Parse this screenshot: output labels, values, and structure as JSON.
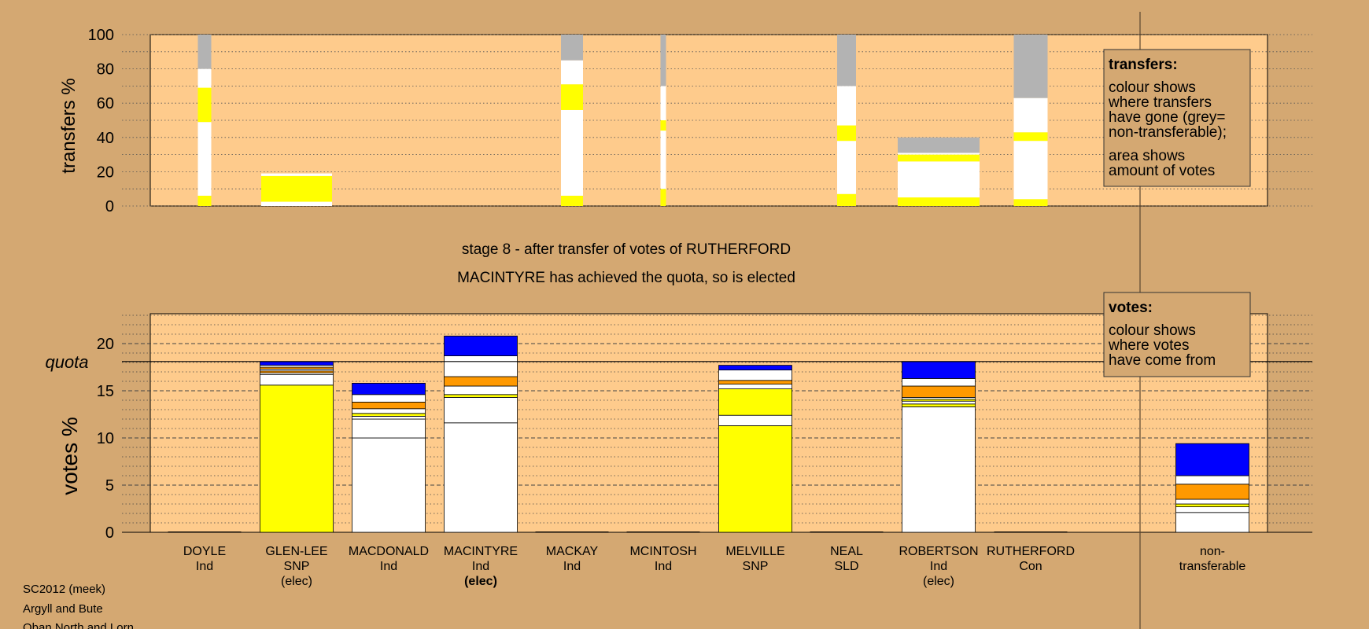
{
  "colors": {
    "background": "#d4a872",
    "plot_bg": "#fecb8c",
    "yellow": "#ffff00",
    "white": "#ffffff",
    "orange": "#ff9900",
    "blue": "#0000ff",
    "grey": "#b3b3b3"
  },
  "stage_title": "stage 8 - after transfer of votes of RUTHERFORD",
  "stage_subtitle": "MACINTYRE has achieved the quota, so is elected",
  "footer": [
    "SC2012 (meek)",
    "Argyll and Bute",
    "Oban North and Lorn"
  ],
  "chart_data": [
    {
      "type": "bar",
      "title": "",
      "ylabel": "transfers %",
      "ylim": [
        0,
        100
      ],
      "yticks": [
        0,
        20,
        40,
        60,
        80,
        100
      ],
      "grid": true,
      "legend": {
        "position": "top-right",
        "title": "transfers:",
        "lines_a": [
          "colour shows",
          "where transfers",
          "have gone (grey=",
          "non-transferable);"
        ],
        "lines_b": [
          "area shows",
          "amount of votes"
        ]
      },
      "bars": [
        {
          "candidate": "DOYLE",
          "segments": [
            {
              "color": "yellow",
              "value": 6
            },
            {
              "color": "white",
              "value": 43
            },
            {
              "color": "yellow",
              "value": 20
            },
            {
              "color": "white",
              "value": 11
            },
            {
              "color": "grey",
              "value": 20
            }
          ]
        },
        {
          "candidate": "GLEN-LEE",
          "segments": [
            {
              "color": "white",
              "value": 2.5
            },
            {
              "color": "yellow",
              "value": 15
            },
            {
              "color": "white",
              "value": 1.5
            }
          ]
        },
        {
          "candidate": "MACKAY",
          "segments": [
            {
              "color": "yellow",
              "value": 6
            },
            {
              "color": "white",
              "value": 50
            },
            {
              "color": "yellow",
              "value": 15
            },
            {
              "color": "white",
              "value": 14
            },
            {
              "color": "grey",
              "value": 15
            }
          ]
        },
        {
          "candidate": "MCINTOSH",
          "segments": [
            {
              "color": "yellow",
              "value": 10
            },
            {
              "color": "white",
              "value": 34
            },
            {
              "color": "yellow",
              "value": 6
            },
            {
              "color": "white",
              "value": 20
            },
            {
              "color": "grey",
              "value": 30
            }
          ]
        },
        {
          "candidate": "NEAL",
          "segments": [
            {
              "color": "yellow",
              "value": 7
            },
            {
              "color": "white",
              "value": 31
            },
            {
              "color": "yellow",
              "value": 9
            },
            {
              "color": "white",
              "value": 23
            },
            {
              "color": "grey",
              "value": 30
            }
          ]
        },
        {
          "candidate": "ROBERTSON",
          "segments": [
            {
              "color": "yellow",
              "value": 5
            },
            {
              "color": "white",
              "value": 21
            },
            {
              "color": "yellow",
              "value": 4
            },
            {
              "color": "white",
              "value": 1
            },
            {
              "color": "grey",
              "value": 9
            }
          ]
        },
        {
          "candidate": "RUTHERFORD",
          "segments": [
            {
              "color": "yellow",
              "value": 4
            },
            {
              "color": "white",
              "value": 34
            },
            {
              "color": "yellow",
              "value": 5
            },
            {
              "color": "white",
              "value": 20
            },
            {
              "color": "grey",
              "value": 37
            }
          ]
        }
      ]
    },
    {
      "type": "bar",
      "title": "",
      "ylabel": "votes %",
      "ylim": [
        0,
        23
      ],
      "yticks": [
        0,
        5,
        10,
        15,
        20
      ],
      "quota": 18.1,
      "quota_label": "quota",
      "grid": true,
      "legend": {
        "position": "top-right",
        "title": "votes:",
        "lines": [
          "colour shows",
          "where votes",
          "have come from"
        ]
      },
      "categories": [
        {
          "name": "DOYLE",
          "party": "Ind",
          "note": ""
        },
        {
          "name": "GLEN-LEE",
          "party": "SNP",
          "note": "(elec)"
        },
        {
          "name": "MACDONALD",
          "party": "Ind",
          "note": ""
        },
        {
          "name": "MACINTYRE",
          "party": "Ind",
          "note": "(elec)",
          "note_bold": true
        },
        {
          "name": "MACKAY",
          "party": "Ind",
          "note": ""
        },
        {
          "name": "MCINTOSH",
          "party": "Ind",
          "note": ""
        },
        {
          "name": "MELVILLE",
          "party": "SNP",
          "note": ""
        },
        {
          "name": "NEAL",
          "party": "SLD",
          "note": ""
        },
        {
          "name": "ROBERTSON",
          "party": "Ind",
          "note": "(elec)"
        },
        {
          "name": "RUTHERFORD",
          "party": "Con",
          "note": ""
        },
        {
          "name": "non-",
          "party": "transferable",
          "note": ""
        }
      ],
      "bars": [
        {
          "candidate": "DOYLE",
          "segments": []
        },
        {
          "candidate": "GLEN-LEE",
          "segments": [
            {
              "color": "yellow",
              "value": 15.6
            },
            {
              "color": "white",
              "value": 1.1
            },
            {
              "color": "white",
              "value": 0.2
            },
            {
              "color": "orange",
              "value": 0.2
            },
            {
              "color": "white",
              "value": 0.2
            },
            {
              "color": "orange",
              "value": 0.2
            },
            {
              "color": "white",
              "value": 0.2
            },
            {
              "color": "blue",
              "value": 0.4
            }
          ]
        },
        {
          "candidate": "MACDONALD",
          "segments": [
            {
              "color": "white",
              "value": 10
            },
            {
              "color": "white",
              "value": 2
            },
            {
              "color": "white",
              "value": 0.3
            },
            {
              "color": "yellow",
              "value": 0.3
            },
            {
              "color": "white",
              "value": 0.5
            },
            {
              "color": "orange",
              "value": 0.7
            },
            {
              "color": "white",
              "value": 0.8
            },
            {
              "color": "blue",
              "value": 1.2
            }
          ]
        },
        {
          "candidate": "MACINTYRE",
          "segments": [
            {
              "color": "white",
              "value": 11.6
            },
            {
              "color": "white",
              "value": 2.7
            },
            {
              "color": "yellow",
              "value": 0.3
            },
            {
              "color": "white",
              "value": 0.9
            },
            {
              "color": "orange",
              "value": 1
            },
            {
              "color": "white",
              "value": 2.2
            },
            {
              "color": "blue",
              "value": 2.1
            }
          ]
        },
        {
          "candidate": "MACKAY",
          "segments": []
        },
        {
          "candidate": "MCINTOSH",
          "segments": []
        },
        {
          "candidate": "MELVILLE",
          "segments": [
            {
              "color": "yellow",
              "value": 11.3
            },
            {
              "color": "white",
              "value": 1.1
            },
            {
              "color": "yellow",
              "value": 2.8
            },
            {
              "color": "white",
              "value": 0.5
            },
            {
              "color": "orange",
              "value": 0.4
            },
            {
              "color": "white",
              "value": 1.1
            },
            {
              "color": "blue",
              "value": 0.5
            }
          ]
        },
        {
          "candidate": "NEAL",
          "segments": []
        },
        {
          "candidate": "ROBERTSON",
          "segments": [
            {
              "color": "white",
              "value": 13.3
            },
            {
              "color": "yellow",
              "value": 0.3
            },
            {
              "color": "white",
              "value": 0.3
            },
            {
              "color": "yellow",
              "value": 0.2
            },
            {
              "color": "white",
              "value": 0.2
            },
            {
              "color": "orange",
              "value": 1.2
            },
            {
              "color": "white",
              "value": 0.8
            },
            {
              "color": "blue",
              "value": 1.8
            }
          ]
        },
        {
          "candidate": "RUTHERFORD",
          "segments": []
        },
        {
          "candidate": "non-transferable",
          "segments": [
            {
              "color": "white",
              "value": 2.1
            },
            {
              "color": "white",
              "value": 0.6
            },
            {
              "color": "yellow",
              "value": 0.3
            },
            {
              "color": "white",
              "value": 0.5
            },
            {
              "color": "orange",
              "value": 1.6
            },
            {
              "color": "white",
              "value": 0.9
            },
            {
              "color": "blue",
              "value": 3.4
            }
          ]
        }
      ]
    }
  ]
}
